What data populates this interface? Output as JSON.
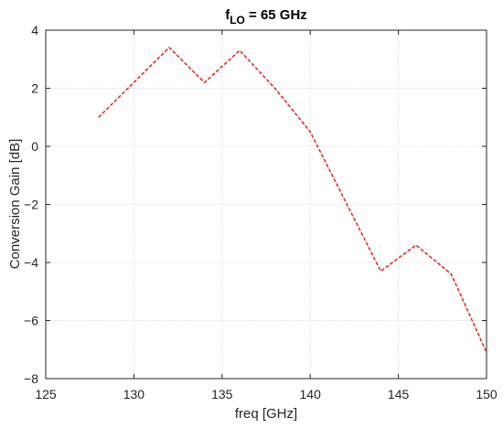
{
  "chart_data": {
    "type": "line",
    "title": "f",
    "title_subscript": "LO",
    "title_suffix": " = 65 GHz",
    "xlabel": "freq [GHz]",
    "ylabel": "Conversion Gain [dB]",
    "xlim": [
      125,
      150
    ],
    "ylim": [
      -8,
      4
    ],
    "xticks": [
      125,
      130,
      135,
      140,
      145,
      150
    ],
    "yticks": [
      -8,
      -6,
      -4,
      -2,
      0,
      2,
      4
    ],
    "xtick_labels": [
      "125",
      "130",
      "135",
      "140",
      "145",
      "150"
    ],
    "ytick_labels": [
      "−8",
      "−6",
      "−4",
      "−2",
      "0",
      "2",
      "4"
    ],
    "grid": true,
    "series": [
      {
        "color": "#e8231e",
        "style": "dashed",
        "x": [
          128,
          132,
          134,
          136,
          138,
          140,
          144,
          146,
          148,
          150
        ],
        "y": [
          1.0,
          3.4,
          2.2,
          3.3,
          2.0,
          0.5,
          -4.3,
          -3.4,
          -4.4,
          -7.1
        ]
      }
    ]
  }
}
